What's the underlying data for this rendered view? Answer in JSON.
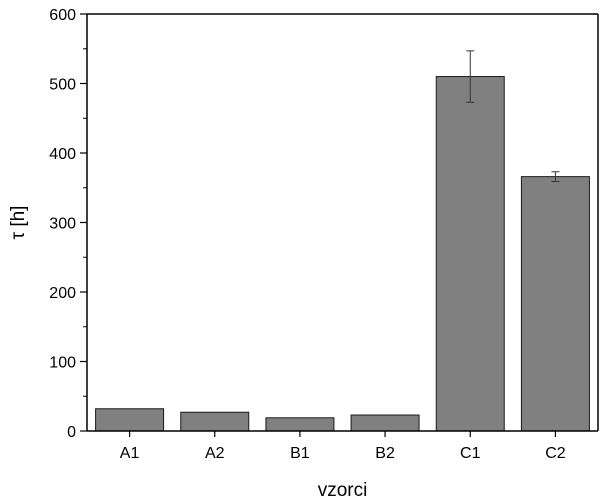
{
  "chart_data": {
    "type": "bar",
    "categories": [
      "A1",
      "A2",
      "B1",
      "B2",
      "C1",
      "C2"
    ],
    "values": [
      32,
      27,
      19,
      23,
      510,
      366
    ],
    "errors": [
      0,
      0,
      0,
      0,
      37,
      7
    ],
    "xlabel": "vzorci",
    "ylabel": "τ [h]",
    "ylim": [
      0,
      600
    ],
    "yticks": [
      0,
      100,
      200,
      300,
      400,
      500,
      600
    ],
    "bar_color": "#808080",
    "bar_edge_color": "#1a1a1a",
    "grid": false,
    "legend": "none"
  }
}
